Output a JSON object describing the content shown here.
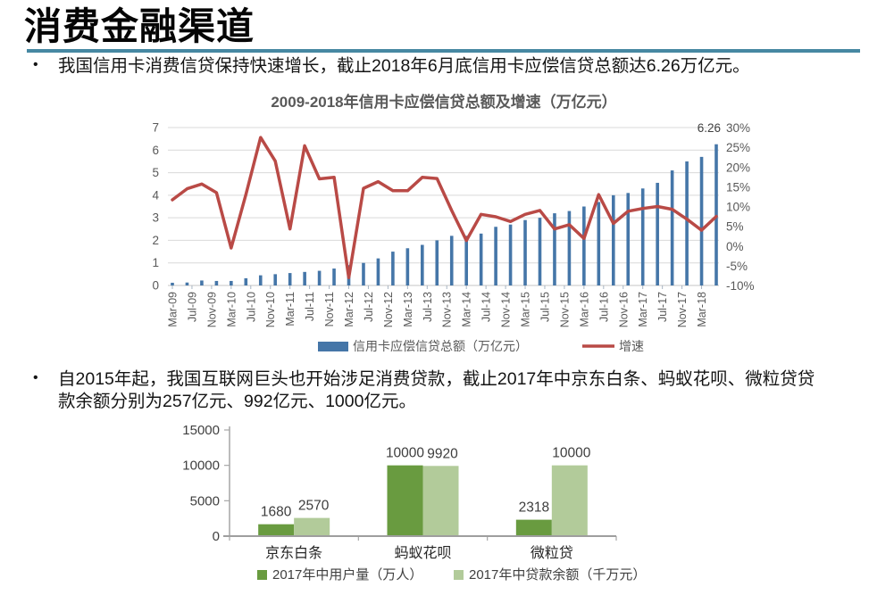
{
  "page": {
    "title": "消费金融渠道",
    "accent_color": "#4688a2",
    "bullet1": "我国信用卡消费信贷保持快速增长，截止2018年6月底信用卡应偿信贷总额达6.26万亿元。",
    "bullet2": "自2015年起，我国互联网巨头也开始涉足消费贷款，截止2017年中京东白条、蚂蚁花呗、微粒贷贷款余额分别为257亿元、992亿元、1000亿元。"
  },
  "chart_data": [
    {
      "type": "bar+line",
      "title": "2009-2018年信用卡应偿信贷总额及增速（万亿元）",
      "x_labels": [
        "Mar-09",
        "Jul-09",
        "Nov-09",
        "Mar-10",
        "Jul-10",
        "Nov-10",
        "Mar-11",
        "Jul-11",
        "Nov-11",
        "Mar-12",
        "Jul-12",
        "Nov-12",
        "Mar-13",
        "Jul-13",
        "Nov-13",
        "Mar-14",
        "Jul-14",
        "Nov-14",
        "Mar-15",
        "Jul-15",
        "Nov-15",
        "Mar-16",
        "Jul-16",
        "Nov-16",
        "Mar-17",
        "Jul-17",
        "Nov-17",
        "Mar-18"
      ],
      "x_label_interval_months": 4,
      "bar_interval_months": 3,
      "series": [
        {
          "name": "信用卡应偿信贷总额（万亿元）",
          "type": "bar",
          "axis": "left",
          "color": "#4576a8",
          "values": [
            0.12,
            0.13,
            0.22,
            0.2,
            0.2,
            0.32,
            0.45,
            0.5,
            0.55,
            0.6,
            0.65,
            0.75,
            0.9,
            1.0,
            1.2,
            1.5,
            1.65,
            1.8,
            2.0,
            2.2,
            2.2,
            2.3,
            2.6,
            2.7,
            2.9,
            3.0,
            3.2,
            3.3,
            3.5,
            3.7,
            4.0,
            4.1,
            4.3,
            4.55,
            5.1,
            5.5,
            5.7,
            6.26
          ]
        },
        {
          "name": "增速",
          "type": "line",
          "axis": "right",
          "color": "#b94a46",
          "values": [
            11.7,
            14.5,
            15.7,
            13.5,
            -0.5,
            13.0,
            27.5,
            21.5,
            4.3,
            25.4,
            17.0,
            17.4,
            -8.0,
            14.6,
            16.3,
            14.0,
            14.0,
            17.4,
            17.1,
            9.0,
            1.4,
            8.0,
            7.4,
            6.2,
            8.0,
            9.0,
            4.3,
            5.4,
            1.9,
            13.0,
            5.7,
            8.8,
            9.5,
            10.0,
            9.3,
            6.8,
            4.0,
            7.5
          ]
        }
      ],
      "left_axis": {
        "min": 0,
        "max": 7,
        "ticks": [
          0,
          1,
          2,
          3,
          4,
          5,
          6,
          7
        ]
      },
      "right_axis": {
        "min": -10,
        "max": 30,
        "ticks": [
          "30%",
          "25%",
          "20%",
          "15%",
          "10%",
          "5%",
          "0%",
          "-5%",
          "-10%"
        ]
      },
      "annotation": "6.26",
      "grid": true,
      "legend_position": "bottom"
    },
    {
      "type": "bar",
      "categories": [
        "京东白条",
        "蚂蚁花呗",
        "微粒贷"
      ],
      "series": [
        {
          "name": "2017年中用户量（万人）",
          "color": "#699b40",
          "values": [
            1680,
            10000,
            2318
          ]
        },
        {
          "name": "2017年中贷款余额（千万元）",
          "color": "#b2cb9a",
          "values": [
            2570,
            9920,
            10000
          ]
        }
      ],
      "ylim": [
        0,
        15000
      ],
      "yticks": [
        0,
        5000,
        10000,
        15000
      ],
      "data_labels": [
        [
          "1680",
          "10000",
          "2318"
        ],
        [
          "2570",
          "9920",
          "10000"
        ]
      ],
      "grid": false,
      "legend_position": "bottom"
    }
  ]
}
